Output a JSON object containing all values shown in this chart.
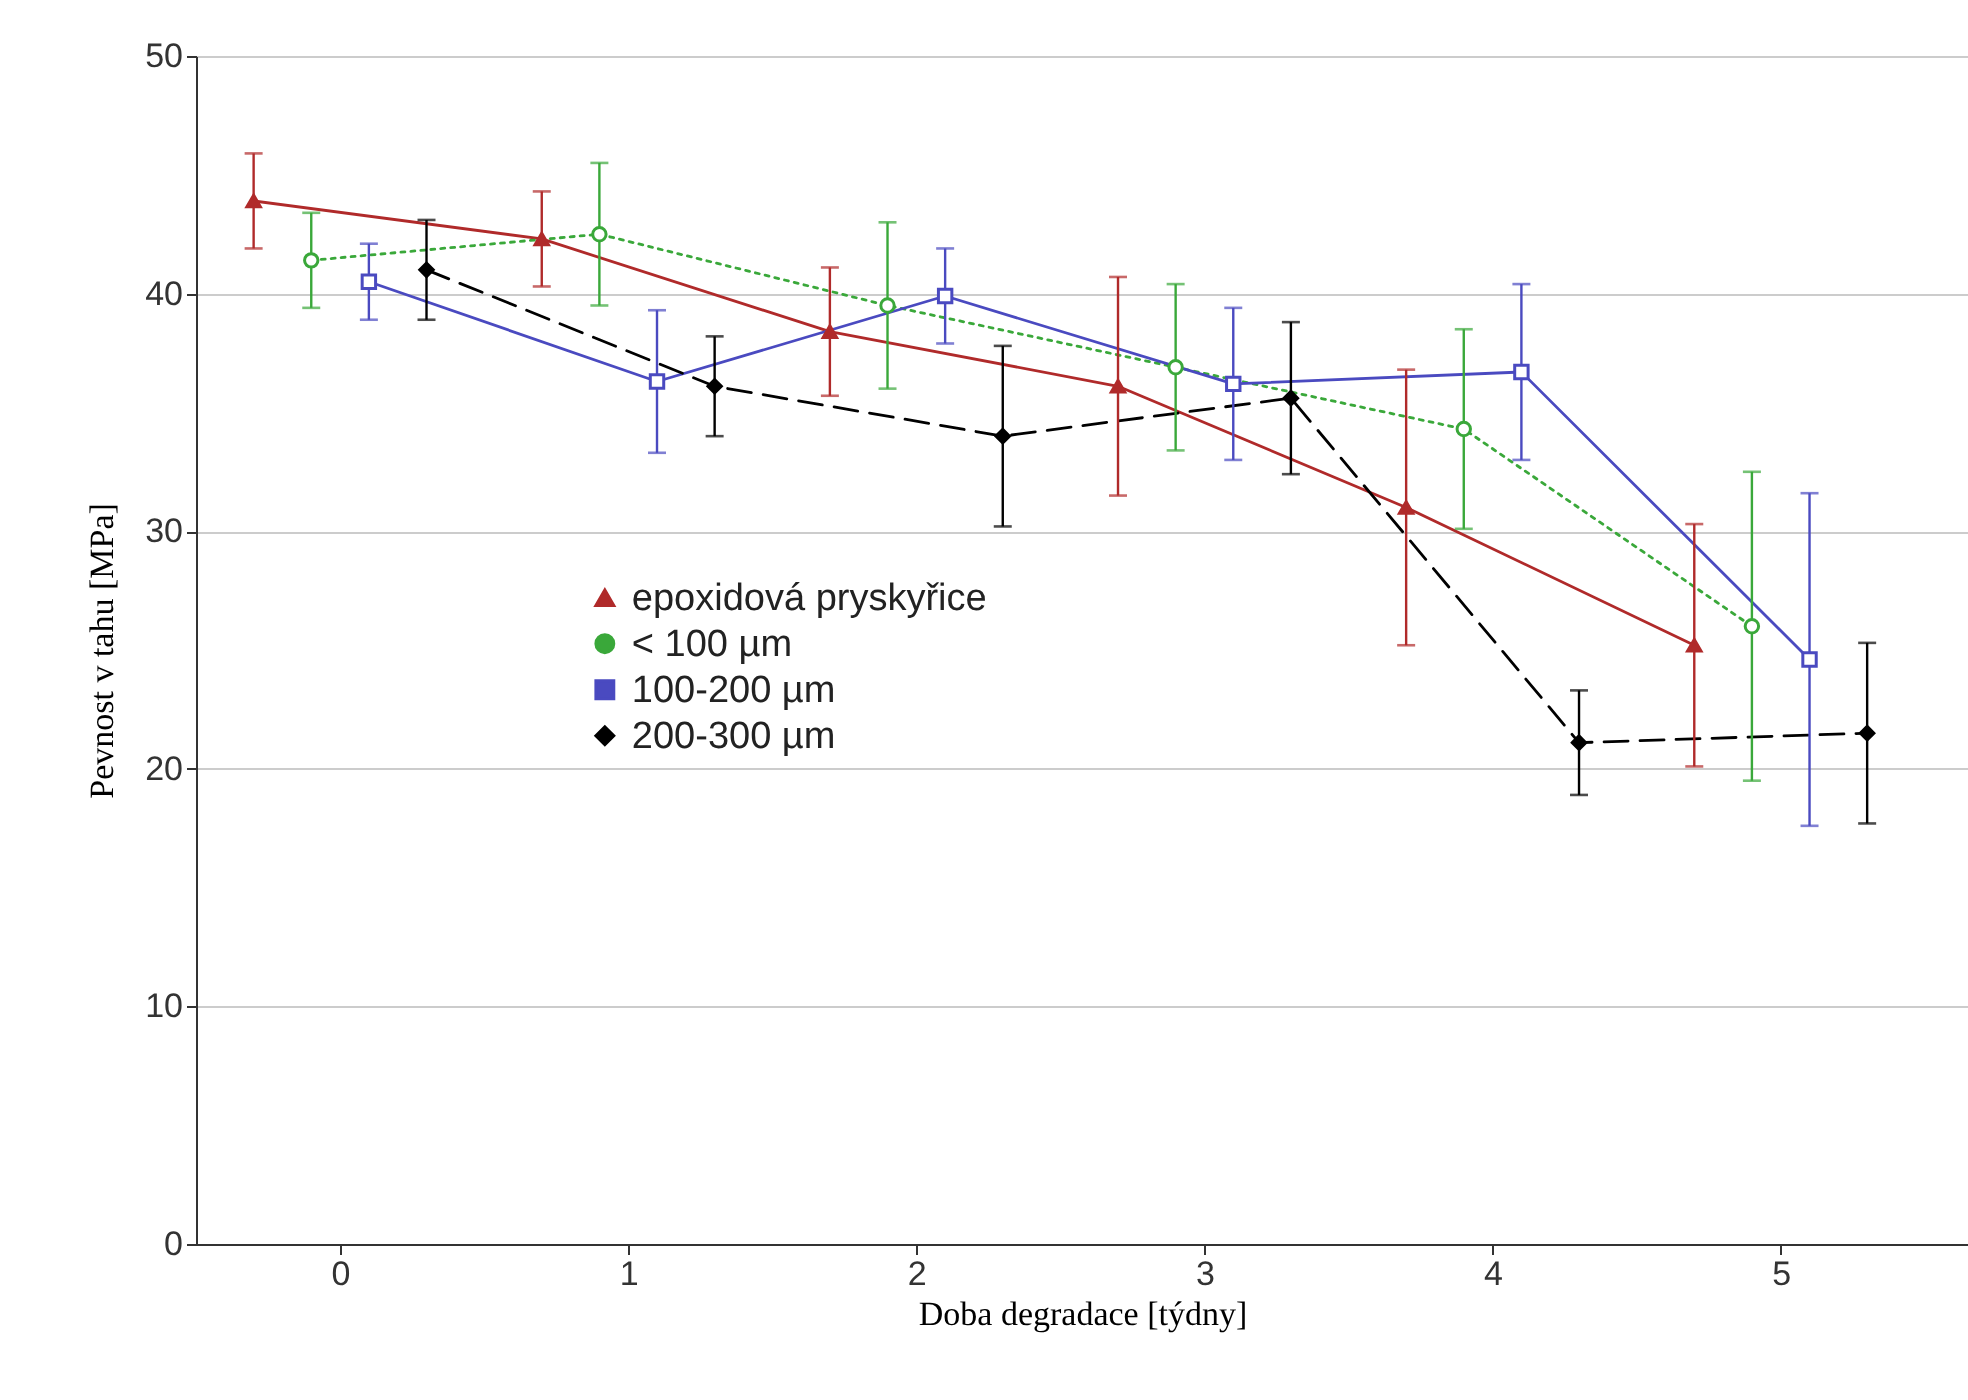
{
  "chart_data": {
    "type": "line",
    "xlabel": "Doba degradace [týdny]",
    "ylabel": "Pevnost v tahu [MPa]",
    "xlim": [
      -0.5,
      5.65
    ],
    "xticks": [
      0,
      1,
      2,
      3,
      4,
      5
    ],
    "ylim": [
      0,
      50
    ],
    "yticks": [
      0,
      10,
      20,
      30,
      40,
      50
    ],
    "grid": "y",
    "legend": "left",
    "series": [
      {
        "name": "epoxidová pryskyřice",
        "color": "#b02a2a",
        "marker": "triangle",
        "line_style": "solid",
        "x": [
          -0.3,
          0.7,
          1.7,
          2.7,
          3.7,
          4.7
        ],
        "values": [
          43.9,
          42.3,
          38.4,
          36.1,
          31.0,
          25.2
        ],
        "errors": [
          2,
          2,
          2.7,
          4.6,
          5.8,
          5.1
        ]
      },
      {
        "name": "< 100 µm",
        "color": "#3aa83a",
        "marker": "circle",
        "line_style": "dotted",
        "x": [
          -0.1,
          0.9,
          1.9,
          2.9,
          3.9,
          4.9
        ],
        "values": [
          41.4,
          42.5,
          39.5,
          36.9,
          34.3,
          26.0
        ],
        "errors": [
          2,
          3,
          3.5,
          3.5,
          4.2,
          6.5
        ]
      },
      {
        "name": "100-200 µm",
        "color": "#4a4ac0",
        "marker": "square",
        "line_style": "solid",
        "x": [
          0.1,
          1.1,
          2.1,
          3.1,
          4.1,
          5.1
        ],
        "values": [
          40.5,
          36.3,
          39.9,
          36.2,
          36.7,
          24.6
        ],
        "errors": [
          1.6,
          3,
          2,
          3.2,
          3.7,
          7
        ]
      },
      {
        "name": "200-300 µm",
        "color": "#000000",
        "marker": "diamond",
        "line_style": "dashed",
        "x": [
          0.3,
          1.3,
          2.3,
          3.3,
          4.3,
          5.3
        ],
        "values": [
          41.0,
          36.1,
          34.0,
          35.6,
          21.1,
          21.5
        ],
        "errors": [
          2.1,
          2.1,
          3.8,
          3.2,
          2.2,
          3.8
        ]
      }
    ]
  }
}
